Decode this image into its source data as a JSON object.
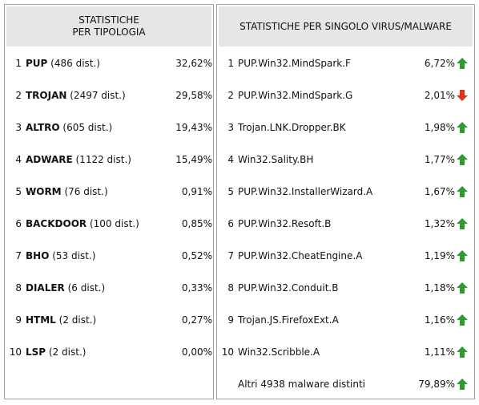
{
  "left": {
    "title_lines": [
      "STATISTICHE",
      "PER TIPOLOGIA"
    ],
    "rows": [
      {
        "rank": 1,
        "name": "PUP",
        "detail": "(486 dist.)",
        "percent": "32,62%"
      },
      {
        "rank": 2,
        "name": "TROJAN",
        "detail": "(2497 dist.)",
        "percent": "29,58%"
      },
      {
        "rank": 3,
        "name": "ALTRO",
        "detail": "(605 dist.)",
        "percent": "19,43%"
      },
      {
        "rank": 4,
        "name": "ADWARE",
        "detail": "(1122 dist.)",
        "percent": "15,49%"
      },
      {
        "rank": 5,
        "name": "WORM",
        "detail": "(76 dist.)",
        "percent": "0,91%"
      },
      {
        "rank": 6,
        "name": "BACKDOOR",
        "detail": "(100 dist.)",
        "percent": "0,85%"
      },
      {
        "rank": 7,
        "name": "BHO",
        "detail": "(53 dist.)",
        "percent": "0,52%"
      },
      {
        "rank": 8,
        "name": "DIALER",
        "detail": "(6 dist.)",
        "percent": "0,33%"
      },
      {
        "rank": 9,
        "name": "HTML",
        "detail": "(2 dist.)",
        "percent": "0,27%"
      },
      {
        "rank": 10,
        "name": "LSP",
        "detail": "(2 dist.)",
        "percent": "0,00%"
      }
    ]
  },
  "right": {
    "title": "STATISTICHE PER SINGOLO VIRUS/MALWARE",
    "rows": [
      {
        "rank": 1,
        "name": "PUP.Win32.MindSpark.F",
        "percent": "6,72%",
        "trend": "up"
      },
      {
        "rank": 2,
        "name": "PUP.Win32.MindSpark.G",
        "percent": "2,01%",
        "trend": "down"
      },
      {
        "rank": 3,
        "name": "Trojan.LNK.Dropper.BK",
        "percent": "1,98%",
        "trend": "up"
      },
      {
        "rank": 4,
        "name": "Win32.Sality.BH",
        "percent": "1,77%",
        "trend": "up"
      },
      {
        "rank": 5,
        "name": "PUP.Win32.InstallerWizard.A",
        "percent": "1,67%",
        "trend": "up"
      },
      {
        "rank": 6,
        "name": "PUP.Win32.Resoft.B",
        "percent": "1,32%",
        "trend": "up"
      },
      {
        "rank": 7,
        "name": "PUP.Win32.CheatEngine.A",
        "percent": "1,19%",
        "trend": "up"
      },
      {
        "rank": 8,
        "name": "PUP.Win32.Conduit.B",
        "percent": "1,18%",
        "trend": "up"
      },
      {
        "rank": 9,
        "name": "Trojan.JS.FirefoxExt.A",
        "percent": "1,16%",
        "trend": "up"
      },
      {
        "rank": 10,
        "name": "Win32.Scribble.A",
        "percent": "1,11%",
        "trend": "up"
      }
    ],
    "other": {
      "label": "Altri 4938 malware distinti",
      "percent": "79,89%",
      "trend": "up"
    }
  }
}
